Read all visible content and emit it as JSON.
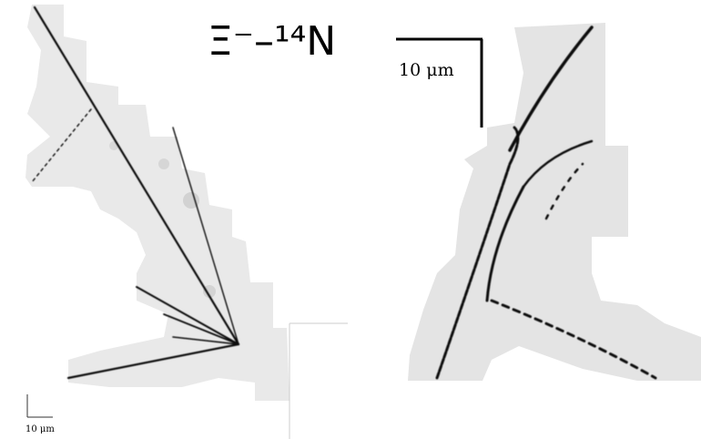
{
  "figure": {
    "title": "Ξ⁻–¹⁴N",
    "right_scale_label": "10 μm",
    "left_scale_label": "10 μm"
  }
}
